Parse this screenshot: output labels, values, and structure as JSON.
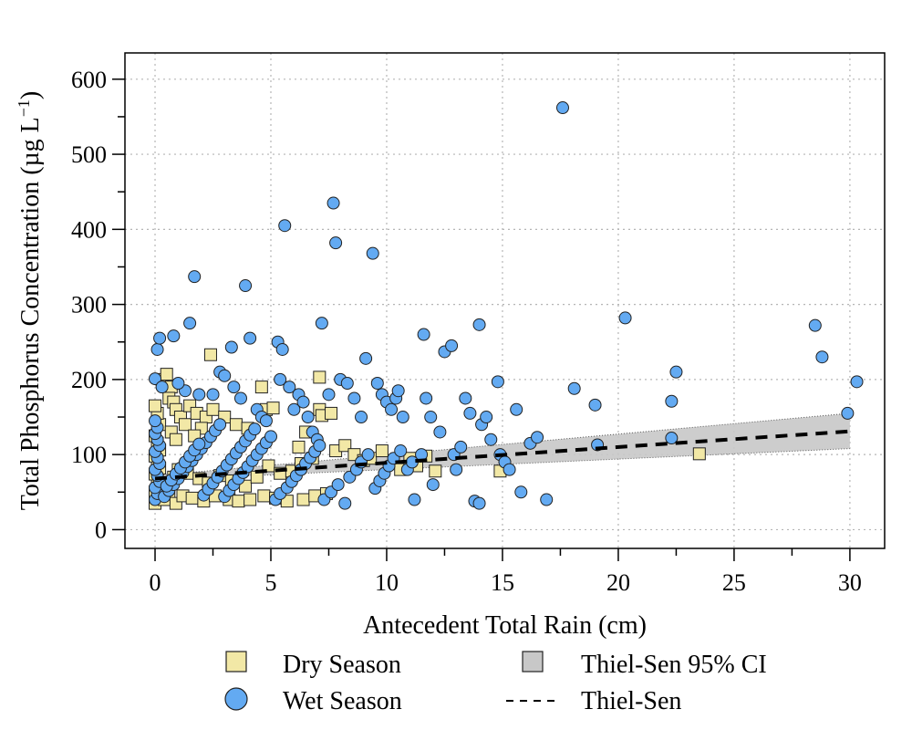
{
  "chart_data": {
    "type": "scatter",
    "title": "",
    "xlabel": "Antecedent Total Rain (cm)",
    "ylabel": "Total Phosphorus Concentration (µg L⁻¹)",
    "ylabel_parts": {
      "main": "Total Phosphorus Concentration (µg L",
      "sup": "−1",
      "close": ")"
    },
    "xlim": [
      -1.3,
      31.5
    ],
    "ylim": [
      -25,
      635
    ],
    "xticks": [
      0,
      5,
      10,
      15,
      20,
      25,
      30
    ],
    "xtick_labels": [
      "0",
      "5",
      "10",
      "15",
      "20",
      "25",
      "30"
    ],
    "yticks": [
      0,
      100,
      200,
      300,
      400,
      500,
      600
    ],
    "ytick_labels": [
      "0",
      "100",
      "200",
      "300",
      "400",
      "500",
      "600"
    ],
    "grid": true,
    "legend_position": "bottom",
    "colors": {
      "dry_fill": "#f2e8a6",
      "wet_fill": "#63aaf2",
      "ci_fill": "#c8c8c8",
      "marker_stroke": "#222222"
    },
    "series": [
      {
        "name": "Dry Season",
        "marker": "square",
        "points": [
          [
            0.0,
            35
          ],
          [
            0.1,
            42
          ],
          [
            0.0,
            50
          ],
          [
            0.2,
            58
          ],
          [
            0.1,
            66
          ],
          [
            0.0,
            74
          ],
          [
            0.2,
            82
          ],
          [
            0.1,
            90
          ],
          [
            0.0,
            98
          ],
          [
            0.2,
            106
          ],
          [
            0.1,
            115
          ],
          [
            0.0,
            125
          ],
          [
            0.2,
            140
          ],
          [
            0.1,
            155
          ],
          [
            0.0,
            165
          ],
          [
            0.3,
            200
          ],
          [
            0.5,
            207
          ],
          [
            0.7,
            190
          ],
          [
            0.6,
            175
          ],
          [
            0.8,
            170
          ],
          [
            0.9,
            160
          ],
          [
            1.1,
            150
          ],
          [
            1.3,
            140
          ],
          [
            0.7,
            130
          ],
          [
            0.9,
            120
          ],
          [
            1.5,
            165
          ],
          [
            1.8,
            155
          ],
          [
            2.2,
            150
          ],
          [
            2.5,
            160
          ],
          [
            2.4,
            233
          ],
          [
            2.0,
            135
          ],
          [
            1.7,
            125
          ],
          [
            3.0,
            150
          ],
          [
            3.5,
            140
          ],
          [
            4.0,
            135
          ],
          [
            4.6,
            190
          ],
          [
            4.8,
            160
          ],
          [
            5.1,
            162
          ],
          [
            0.4,
            40
          ],
          [
            0.6,
            48
          ],
          [
            0.9,
            35
          ],
          [
            1.2,
            45
          ],
          [
            1.6,
            42
          ],
          [
            2.1,
            38
          ],
          [
            2.6,
            45
          ],
          [
            3.2,
            40
          ],
          [
            3.6,
            38
          ],
          [
            4.1,
            40
          ],
          [
            4.7,
            45
          ],
          [
            5.2,
            42
          ],
          [
            5.7,
            38
          ],
          [
            6.4,
            40
          ],
          [
            6.9,
            45
          ],
          [
            7.4,
            48
          ],
          [
            0.5,
            60
          ],
          [
            0.8,
            70
          ],
          [
            1.0,
            80
          ],
          [
            1.4,
            75
          ],
          [
            1.9,
            68
          ],
          [
            2.3,
            62
          ],
          [
            2.8,
            72
          ],
          [
            3.3,
            65
          ],
          [
            3.9,
            58
          ],
          [
            4.4,
            70
          ],
          [
            4.9,
            85
          ],
          [
            5.4,
            75
          ],
          [
            5.9,
            78
          ],
          [
            6.3,
            88
          ],
          [
            6.8,
            95
          ],
          [
            6.2,
            110
          ],
          [
            6.5,
            130
          ],
          [
            7.1,
            160
          ],
          [
            7.2,
            152
          ],
          [
            7.6,
            155
          ],
          [
            7.1,
            203
          ],
          [
            7.8,
            105
          ],
          [
            8.2,
            112
          ],
          [
            8.6,
            100
          ],
          [
            9.0,
            92
          ],
          [
            9.3,
            95
          ],
          [
            9.8,
            105
          ],
          [
            10.6,
            80
          ],
          [
            11.0,
            95
          ],
          [
            11.3,
            85
          ],
          [
            11.7,
            98
          ],
          [
            12.1,
            78
          ],
          [
            14.9,
            78
          ],
          [
            23.5,
            101
          ]
        ]
      },
      {
        "name": "Wet Season",
        "marker": "circle",
        "points": [
          [
            0.0,
            40
          ],
          [
            0.1,
            48
          ],
          [
            0.0,
            56
          ],
          [
            0.2,
            64
          ],
          [
            0.1,
            72
          ],
          [
            0.0,
            80
          ],
          [
            0.2,
            88
          ],
          [
            0.1,
            96
          ],
          [
            0.0,
            104
          ],
          [
            0.2,
            112
          ],
          [
            0.1,
            120
          ],
          [
            0.0,
            128
          ],
          [
            0.1,
            136
          ],
          [
            0.0,
            145
          ],
          [
            0.1,
            240
          ],
          [
            0.2,
            255
          ],
          [
            0.0,
            201
          ],
          [
            0.3,
            190
          ],
          [
            0.4,
            44
          ],
          [
            0.6,
            52
          ],
          [
            0.8,
            60
          ],
          [
            1.0,
            68
          ],
          [
            1.2,
            76
          ],
          [
            1.4,
            84
          ],
          [
            1.6,
            92
          ],
          [
            1.8,
            100
          ],
          [
            2.0,
            108
          ],
          [
            2.2,
            116
          ],
          [
            2.4,
            124
          ],
          [
            2.6,
            132
          ],
          [
            2.8,
            140
          ],
          [
            3.0,
            44
          ],
          [
            3.2,
            52
          ],
          [
            3.4,
            60
          ],
          [
            3.6,
            68
          ],
          [
            3.8,
            76
          ],
          [
            4.0,
            84
          ],
          [
            4.2,
            92
          ],
          [
            4.4,
            100
          ],
          [
            4.6,
            108
          ],
          [
            4.8,
            116
          ],
          [
            5.0,
            124
          ],
          [
            0.5,
            58
          ],
          [
            0.7,
            66
          ],
          [
            0.9,
            74
          ],
          [
            1.1,
            82
          ],
          [
            1.3,
            90
          ],
          [
            1.5,
            98
          ],
          [
            1.7,
            106
          ],
          [
            1.9,
            114
          ],
          [
            2.1,
            46
          ],
          [
            2.3,
            54
          ],
          [
            2.5,
            62
          ],
          [
            2.7,
            70
          ],
          [
            2.9,
            78
          ],
          [
            3.1,
            86
          ],
          [
            3.3,
            94
          ],
          [
            3.5,
            102
          ],
          [
            3.7,
            110
          ],
          [
            3.9,
            118
          ],
          [
            4.1,
            126
          ],
          [
            4.3,
            134
          ],
          [
            0.8,
            258
          ],
          [
            1.5,
            275
          ],
          [
            1.7,
            337
          ],
          [
            1.3,
            185
          ],
          [
            1.0,
            195
          ],
          [
            1.9,
            180
          ],
          [
            2.5,
            180
          ],
          [
            2.8,
            210
          ],
          [
            3.0,
            205
          ],
          [
            3.3,
            243
          ],
          [
            3.4,
            190
          ],
          [
            3.7,
            175
          ],
          [
            3.9,
            325
          ],
          [
            4.1,
            255
          ],
          [
            4.4,
            160
          ],
          [
            4.6,
            150
          ],
          [
            4.8,
            145
          ],
          [
            5.3,
            250
          ],
          [
            5.5,
            240
          ],
          [
            5.6,
            405
          ],
          [
            5.4,
            200
          ],
          [
            5.8,
            190
          ],
          [
            6.0,
            160
          ],
          [
            6.2,
            180
          ],
          [
            6.4,
            170
          ],
          [
            6.6,
            150
          ],
          [
            6.8,
            130
          ],
          [
            7.0,
            120
          ],
          [
            7.2,
            275
          ],
          [
            7.5,
            180
          ],
          [
            7.7,
            435
          ],
          [
            7.8,
            382
          ],
          [
            8.0,
            200
          ],
          [
            8.3,
            195
          ],
          [
            8.6,
            175
          ],
          [
            8.9,
            150
          ],
          [
            9.1,
            228
          ],
          [
            9.4,
            368
          ],
          [
            9.6,
            195
          ],
          [
            9.8,
            180
          ],
          [
            10.0,
            170
          ],
          [
            10.2,
            160
          ],
          [
            10.4,
            175
          ],
          [
            10.5,
            185
          ],
          [
            10.7,
            150
          ],
          [
            5.2,
            40
          ],
          [
            5.4,
            48
          ],
          [
            5.7,
            56
          ],
          [
            5.9,
            64
          ],
          [
            6.1,
            72
          ],
          [
            6.3,
            80
          ],
          [
            6.5,
            88
          ],
          [
            6.7,
            96
          ],
          [
            6.9,
            104
          ],
          [
            7.1,
            112
          ],
          [
            7.3,
            40
          ],
          [
            7.6,
            50
          ],
          [
            7.9,
            60
          ],
          [
            8.2,
            35
          ],
          [
            8.4,
            70
          ],
          [
            8.7,
            80
          ],
          [
            8.9,
            90
          ],
          [
            9.2,
            100
          ],
          [
            9.5,
            55
          ],
          [
            9.7,
            65
          ],
          [
            9.9,
            75
          ],
          [
            10.1,
            85
          ],
          [
            10.3,
            95
          ],
          [
            10.6,
            105
          ],
          [
            10.9,
            80
          ],
          [
            11.1,
            90
          ],
          [
            11.2,
            40
          ],
          [
            11.5,
            100
          ],
          [
            11.6,
            260
          ],
          [
            11.7,
            175
          ],
          [
            11.9,
            150
          ],
          [
            12.3,
            130
          ],
          [
            12.5,
            237
          ],
          [
            12.8,
            245
          ],
          [
            12.9,
            100
          ],
          [
            13.2,
            110
          ],
          [
            13.4,
            175
          ],
          [
            13.6,
            155
          ],
          [
            13.8,
            38
          ],
          [
            14.0,
            273
          ],
          [
            14.1,
            140
          ],
          [
            14.3,
            150
          ],
          [
            14.5,
            120
          ],
          [
            14.8,
            197
          ],
          [
            14.9,
            100
          ],
          [
            15.1,
            90
          ],
          [
            15.3,
            80
          ],
          [
            15.6,
            160
          ],
          [
            15.8,
            50
          ],
          [
            16.2,
            115
          ],
          [
            16.5,
            123
          ],
          [
            16.9,
            40
          ],
          [
            14.0,
            35
          ],
          [
            13.0,
            80
          ],
          [
            12.0,
            60
          ],
          [
            17.6,
            562
          ],
          [
            18.1,
            188
          ],
          [
            19.0,
            166
          ],
          [
            19.1,
            113
          ],
          [
            20.3,
            282
          ],
          [
            22.3,
            171
          ],
          [
            22.5,
            210
          ],
          [
            22.3,
            122
          ],
          [
            28.5,
            272
          ],
          [
            28.8,
            230
          ],
          [
            29.9,
            155
          ],
          [
            30.3,
            197
          ]
        ]
      }
    ],
    "fit": {
      "name": "Thiel-Sen",
      "x": [
        0,
        30
      ],
      "y": [
        68,
        131
      ],
      "ci_name": "Thiel-Sen 95% CI",
      "ci_lower": [
        [
          0,
          66
        ],
        [
          30,
          108
        ]
      ],
      "ci_upper": [
        [
          0,
          72
        ],
        [
          30,
          155
        ]
      ]
    },
    "legend": [
      {
        "label": "Dry Season",
        "symbol": "square"
      },
      {
        "label": "Thiel-Sen 95% CI",
        "symbol": "gray-square"
      },
      {
        "label": "Wet Season",
        "symbol": "circle"
      },
      {
        "label": "Thiel-Sen",
        "symbol": "dashed-line"
      }
    ]
  }
}
